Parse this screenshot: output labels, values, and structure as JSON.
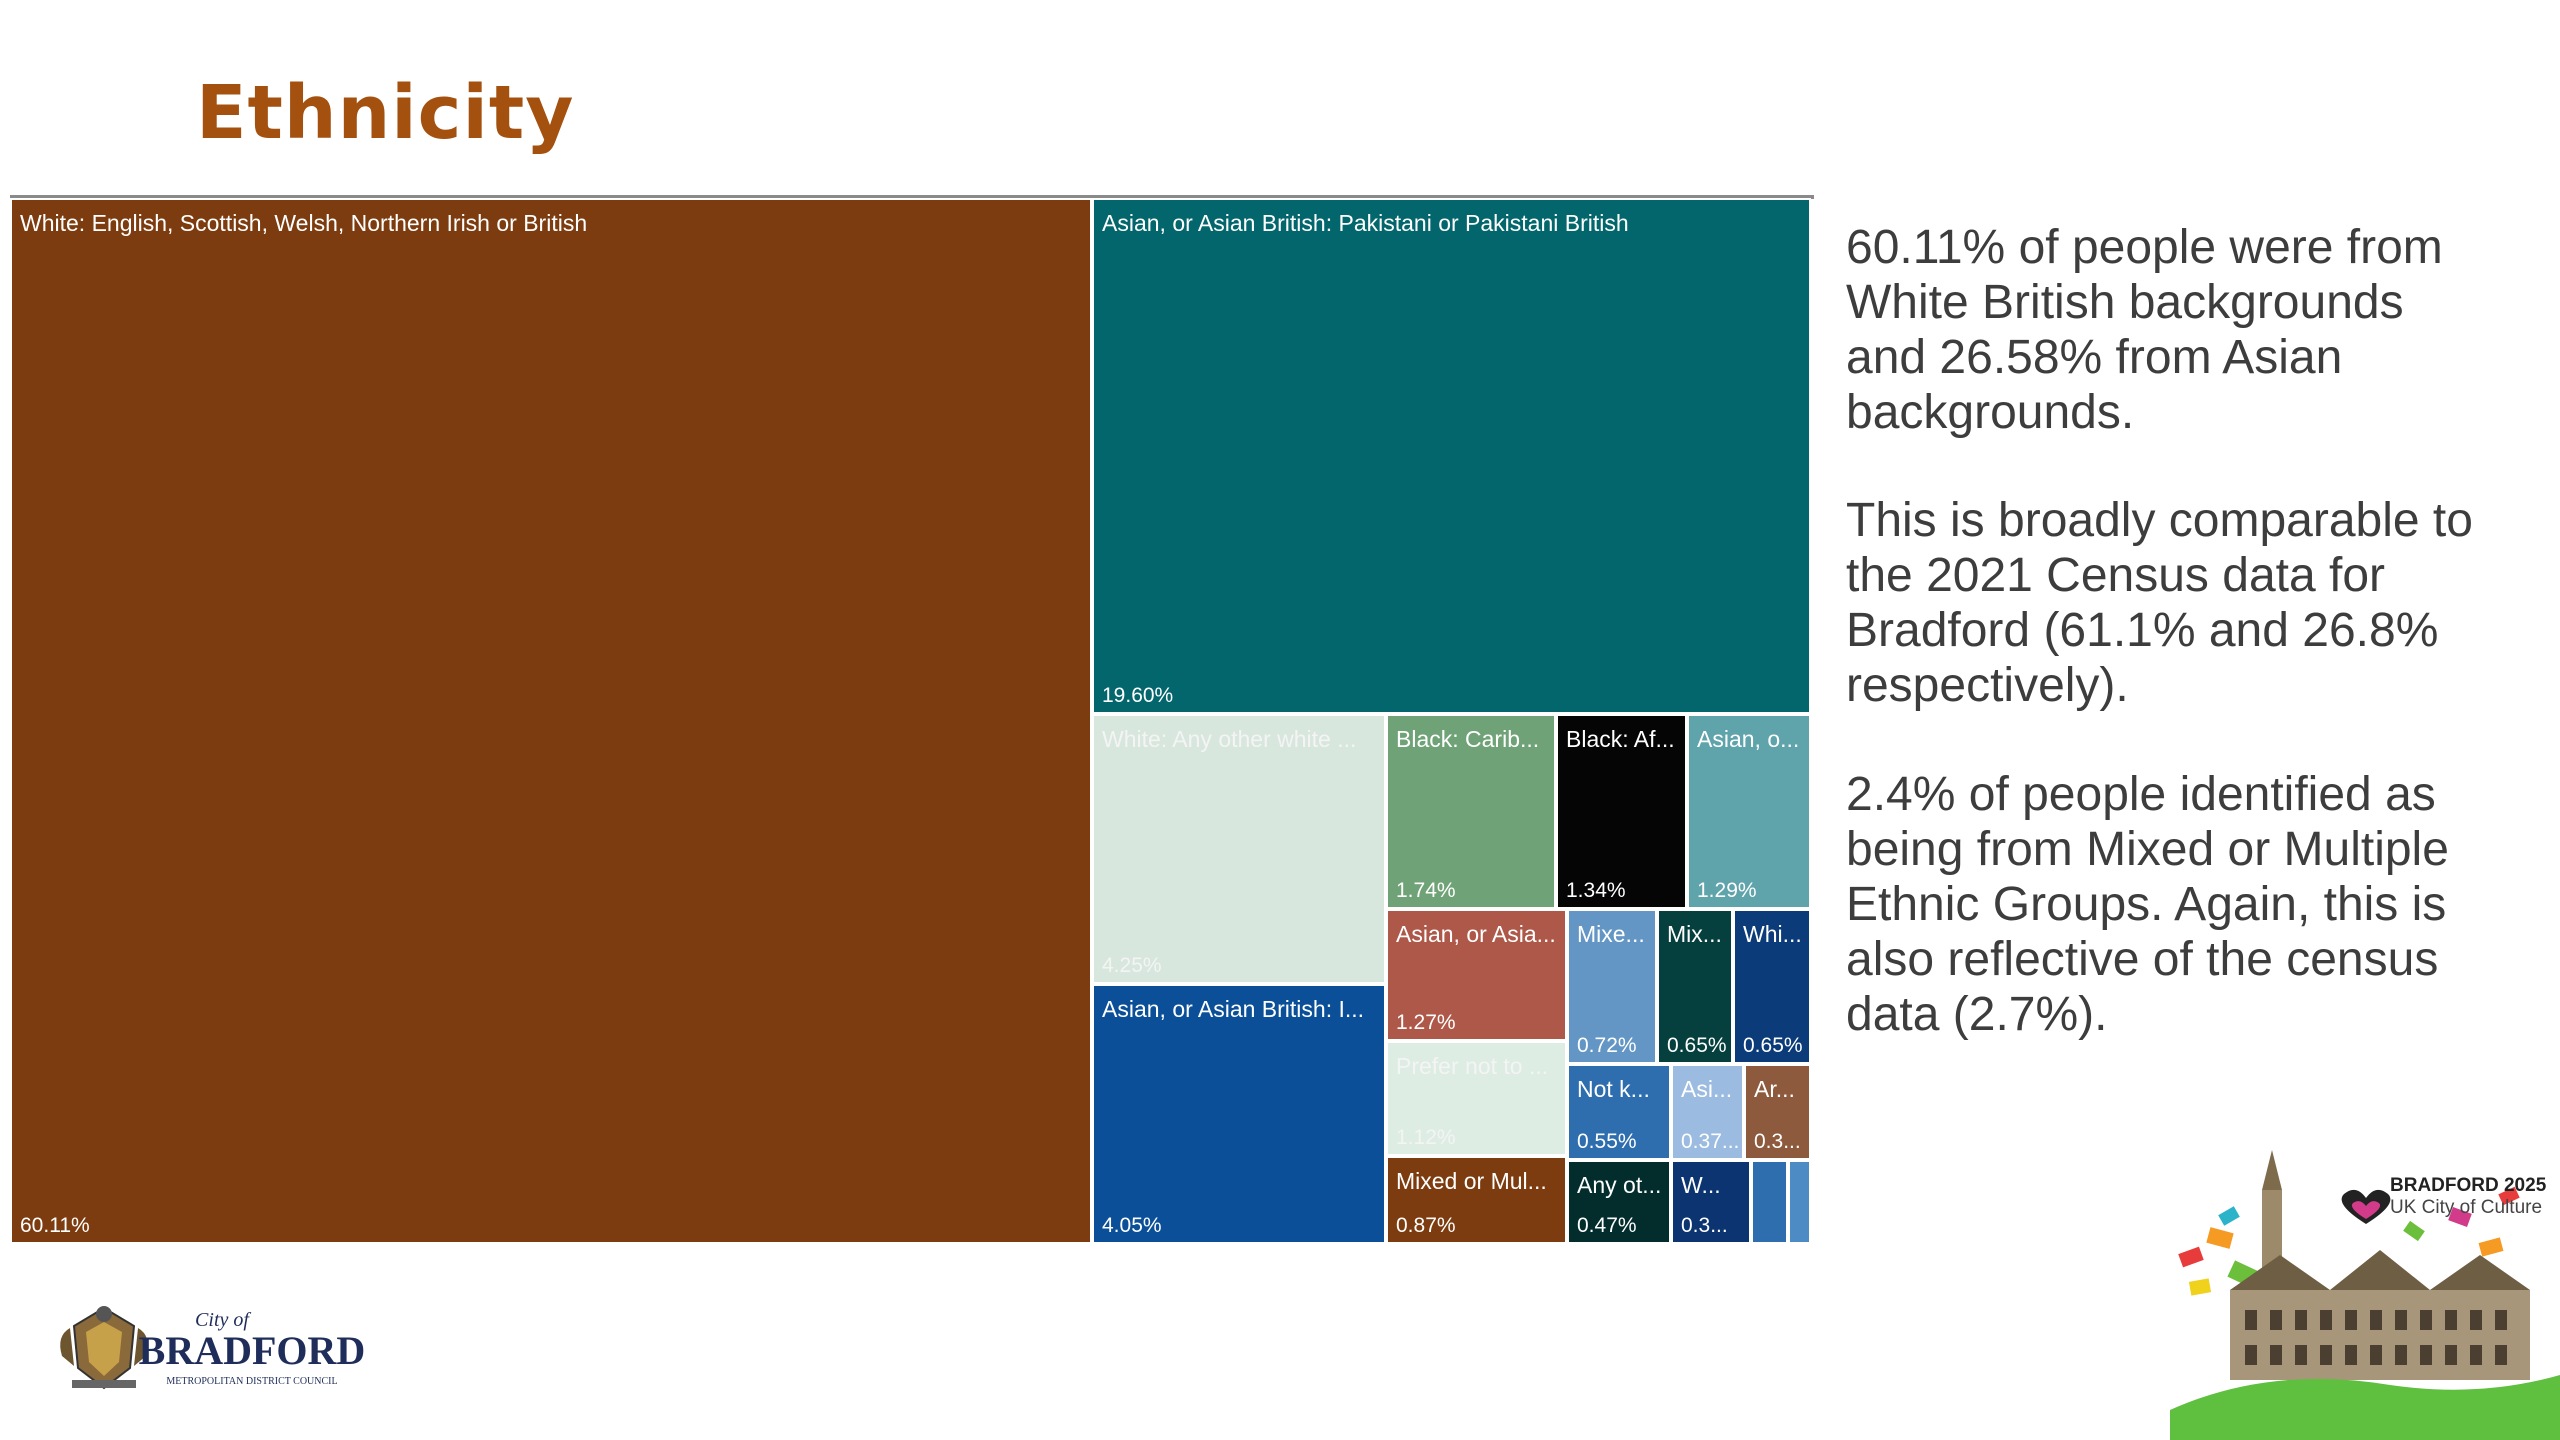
{
  "page": {
    "title": "Ethnicity"
  },
  "chart_data": {
    "type": "treemap",
    "series": [
      {
        "name": "White: English, Scottish, Welsh, Northern Irish or British",
        "label": "White: English, Scottish, Welsh, Northern Irish or British",
        "value": 60.11,
        "value_label": "60.11%",
        "color": "#7d3c0f"
      },
      {
        "name": "Asian, or Asian British: Pakistani or Pakistani British",
        "label": "Asian, or Asian British: Pakistani or Pakistani British",
        "value": 19.6,
        "value_label": "19.60%",
        "color": "#02666c"
      },
      {
        "name": "White: Any other white",
        "label": "White: Any other white ...",
        "value": 4.25,
        "value_label": "4.25%",
        "color": "#d7e7dd"
      },
      {
        "name": "Asian, or Asian British: I",
        "label": "Asian, or Asian British: I...",
        "value": 4.05,
        "value_label": "4.05%",
        "color": "#0a4f97"
      },
      {
        "name": "Black: Carib",
        "label": "Black: Carib...",
        "value": 1.74,
        "value_label": "1.74%",
        "color": "#6fa377"
      },
      {
        "name": "Black: Af",
        "label": "Black: Af...",
        "value": 1.34,
        "value_label": "1.34%",
        "color": "#050505"
      },
      {
        "name": "Asian, o",
        "label": "Asian, o...",
        "value": 1.29,
        "value_label": "1.29%",
        "color": "#5fa3ab"
      },
      {
        "name": "Asian, or Asia",
        "label": "Asian, or Asia...",
        "value": 1.27,
        "value_label": "1.27%",
        "color": "#ad5848"
      },
      {
        "name": "Prefer not to",
        "label": "Prefer not to ...",
        "value": 1.12,
        "value_label": "1.12%",
        "color": "#ddede3"
      },
      {
        "name": "Mixed or Mul",
        "label": "Mixed or Mul...",
        "value": 0.87,
        "value_label": "0.87%",
        "color": "#7d3c0f"
      },
      {
        "name": "Mixe",
        "label": "Mixe...",
        "value": 0.72,
        "value_label": "0.72%",
        "color": "#6396c4"
      },
      {
        "name": "Mix",
        "label": "Mix...",
        "value": 0.65,
        "value_label": "0.65%",
        "color": "#05403e"
      },
      {
        "name": "Whi",
        "label": "Whi...",
        "value": 0.65,
        "value_label": "0.65%",
        "color": "#0b3b78"
      },
      {
        "name": "Not k",
        "label": "Not k...",
        "value": 0.55,
        "value_label": "0.55%",
        "color": "#2e6eae"
      },
      {
        "name": "Asi",
        "label": "Asi...",
        "value": 0.37,
        "value_label": "0.37...",
        "color": "#9cbbe0"
      },
      {
        "name": "Ar",
        "label": "Ar...",
        "value": 0.3,
        "value_label": "0.3...",
        "color": "#8d5a3d"
      },
      {
        "name": "Any ot",
        "label": "Any ot...",
        "value": 0.47,
        "value_label": "0.47%",
        "color": "#032d2d"
      },
      {
        "name": "W",
        "label": "W...",
        "value": 0.3,
        "value_label": "0.3...",
        "color": "#0b3470"
      },
      {
        "name": "",
        "label": "",
        "value": 0.2,
        "value_label": "",
        "color": "#2e6eae"
      },
      {
        "name": "",
        "label": "",
        "value": 0.15,
        "value_label": "",
        "color": "#4d8bc4"
      }
    ]
  },
  "text": {
    "p1": "60.11% of people were from White British backgrounds and 26.58% from Asian backgrounds.",
    "p2": "This is broadly comparable to the 2021 Census data for Bradford (61.1% and 26.8% respectively).",
    "p3": "2.4% of people identified as being from Mixed or Multiple Ethnic Groups. Again, this is also reflective of the census data (2.7%)."
  },
  "logos": {
    "left": {
      "line1": "City of",
      "line2": "BRADFORD",
      "line3": "METROPOLITAN DISTRICT COUNCIL"
    },
    "right": {
      "line1": "BRADFORD 2025",
      "line2": "UK City of Culture"
    }
  }
}
